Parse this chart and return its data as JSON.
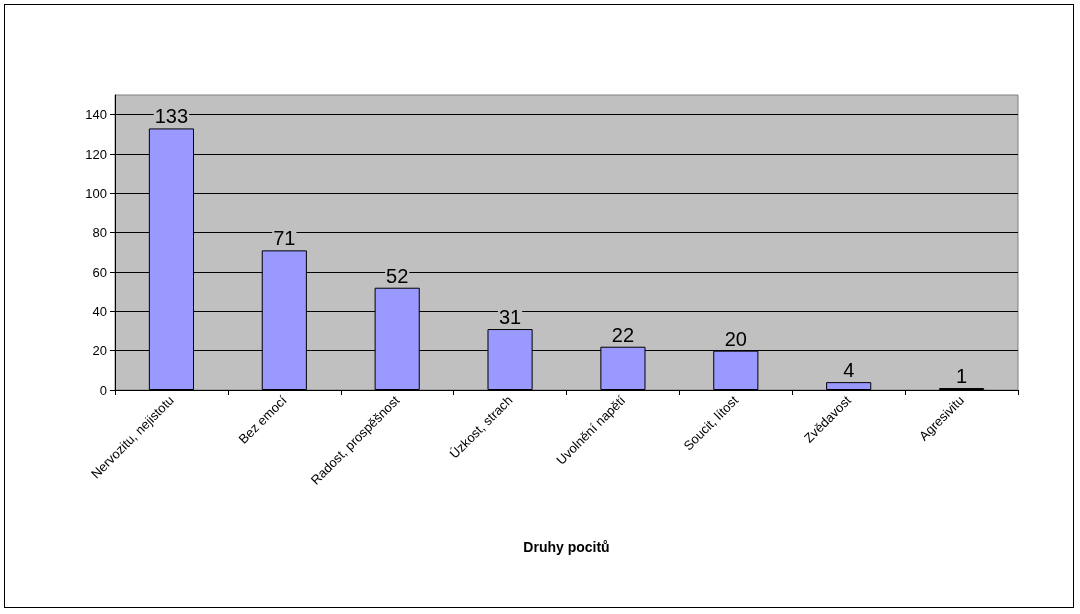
{
  "chart_data": {
    "type": "bar",
    "xlabel": "Druhy pocitů",
    "categories": [
      "Nervozitu, nejistotu",
      "Bez emocí",
      "Radost, prospěšnost",
      "Úzkost, strach",
      "Uvolnění napětí",
      "Soucit, lítost",
      "Zvědavost",
      "Agresivitu"
    ],
    "values": [
      133,
      71,
      52,
      31,
      22,
      20,
      4,
      1
    ],
    "color": "#9999ff",
    "ylim": [
      0,
      150
    ],
    "yticks": [
      0,
      20,
      40,
      60,
      80,
      100,
      120,
      140
    ],
    "grid": "y",
    "data_labels": true
  }
}
